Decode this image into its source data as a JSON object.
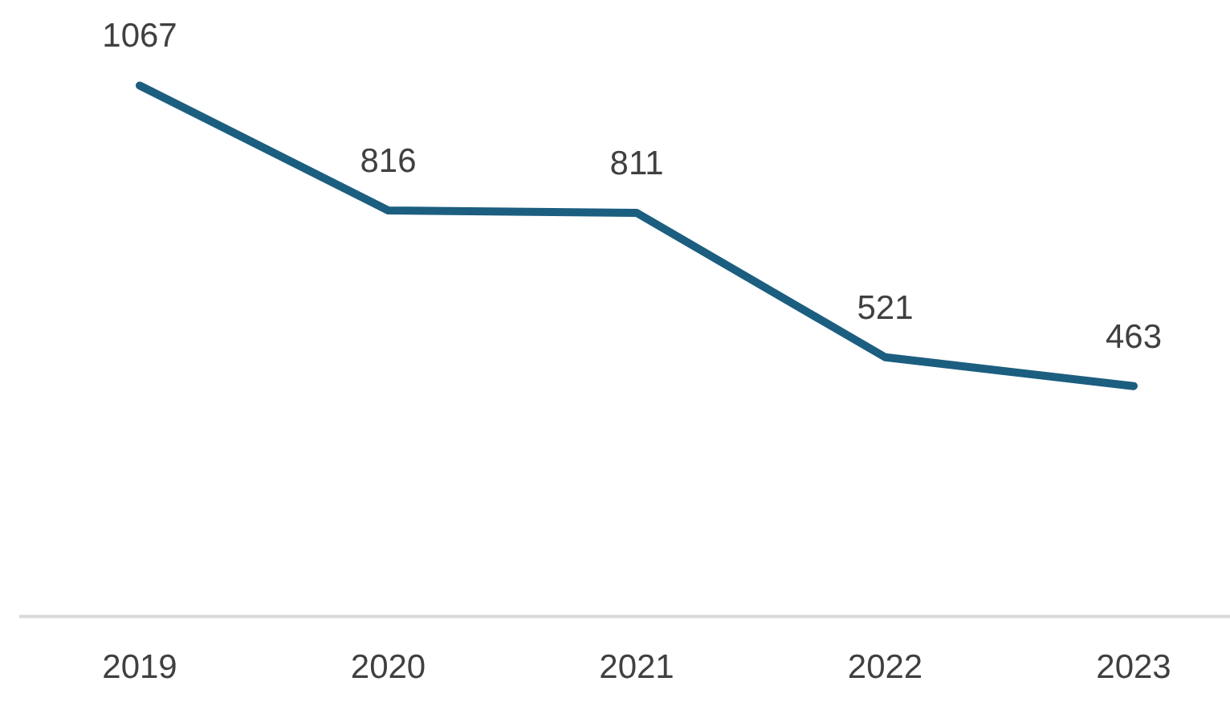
{
  "chart_data": {
    "type": "line",
    "categories": [
      "2019",
      "2020",
      "2021",
      "2022",
      "2023"
    ],
    "values": [
      1067,
      816,
      811,
      521,
      463
    ],
    "color": "#1b5e80",
    "data_labels": true,
    "tick_labels": "x",
    "marker": "none",
    "line_style": "solid",
    "grid": false
  }
}
